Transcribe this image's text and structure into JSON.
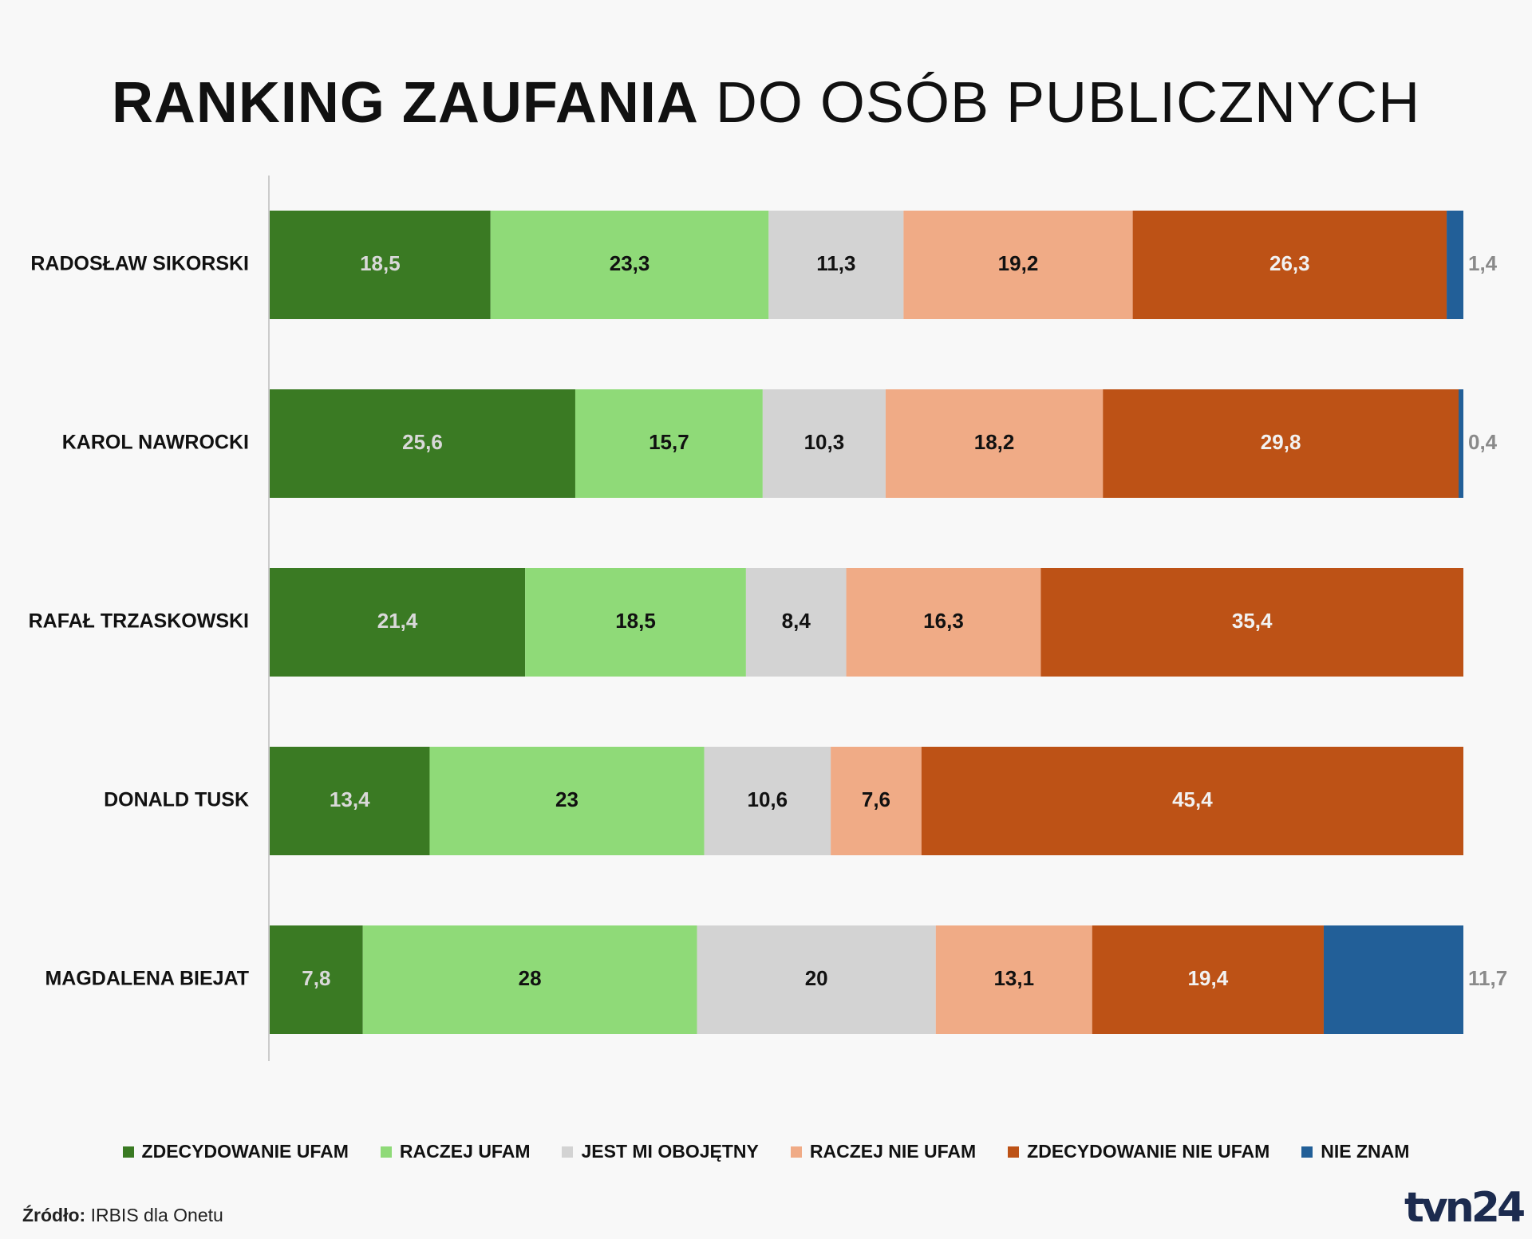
{
  "title": {
    "bold": "RANKING ZAUFANIA",
    "light": "DO OSÓB PUBLICZNYCH"
  },
  "chart_data": {
    "type": "bar",
    "orientation": "horizontal",
    "stacked": true,
    "categories": [
      "RADOSŁAW SIKORSKI",
      "KAROL NAWROCKI",
      "RAFAŁ TRZASKOWSKI",
      "DONALD TUSK",
      "MAGDALENA BIEJAT"
    ],
    "series": [
      {
        "name": "ZDECYDOWANIE UFAM",
        "color": "#3a7a23",
        "label_color": "#d9d9d9",
        "values": [
          18.5,
          25.6,
          21.4,
          13.4,
          7.8
        ],
        "labels": [
          "18,5",
          "25,6",
          "21,4",
          "13,4",
          "7,8"
        ]
      },
      {
        "name": "RACZEJ UFAM",
        "color": "#8fda78",
        "label_color": "#111111",
        "values": [
          23.3,
          15.7,
          18.5,
          23,
          28
        ],
        "labels": [
          "23,3",
          "15,7",
          "18,5",
          "23",
          "28"
        ]
      },
      {
        "name": "JEST MI OBOJĘTNY",
        "color": "#d3d3d3",
        "label_color": "#111111",
        "values": [
          11.3,
          10.3,
          8.4,
          10.6,
          20
        ],
        "labels": [
          "11,3",
          "10,3",
          "8,4",
          "10,6",
          "20"
        ]
      },
      {
        "name": "RACZEJ NIE UFAM",
        "color": "#f0ab86",
        "label_color": "#111111",
        "values": [
          19.2,
          18.2,
          16.3,
          7.6,
          13.1
        ],
        "labels": [
          "19,2",
          "18,2",
          "16,3",
          "7,6",
          "13,1"
        ]
      },
      {
        "name": "ZDECYDOWANIE NIE UFAM",
        "color": "#bd5216",
        "label_color": "#f2f2f2",
        "values": [
          26.3,
          29.8,
          35.4,
          45.4,
          19.4
        ],
        "labels": [
          "26,3",
          "29,8",
          "35,4",
          "45,4",
          "19,4"
        ]
      },
      {
        "name": "NIE ZNAM",
        "color": "#225f98",
        "label_color": "#8a8a8a",
        "values": [
          1.4,
          0.4,
          0,
          0,
          11.7
        ],
        "labels": [
          "1,4",
          "0,4",
          "",
          "",
          "11,7"
        ]
      }
    ],
    "xlim": [
      0,
      100
    ],
    "legend_position": "bottom"
  },
  "source": {
    "label": "Źródło:",
    "text": "IRBIS dla Onetu"
  },
  "logo": "tvn24"
}
